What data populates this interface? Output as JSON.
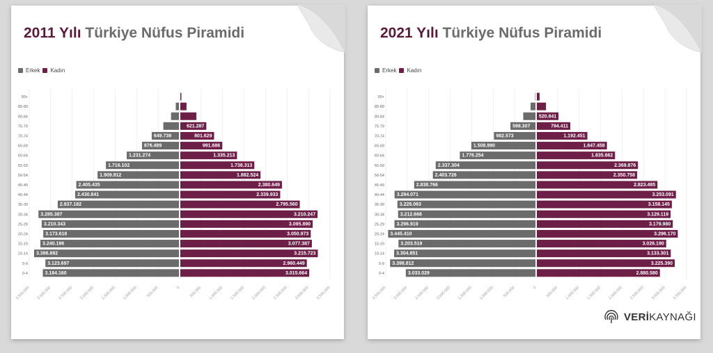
{
  "panels": [
    {
      "title_year": "2011 Yılı",
      "title_rest": "Türkiye Nüfus Piramidi",
      "legend": [
        "Erkek",
        "Kadın"
      ]
    },
    {
      "title_year": "2021 Yılı",
      "title_rest": "Türkiye Nüfus Piramidi",
      "legend": [
        "Erkek",
        "Kadın"
      ]
    }
  ],
  "brand": {
    "bold": "VERİ",
    "rest": "KAYNAĞI"
  },
  "colors": {
    "male": "#6b6b6b",
    "female": "#6e1f48",
    "title_year": "#5a1a3a"
  },
  "chart_data": [
    {
      "type": "bar",
      "orientation": "horizontal-pyramid",
      "categories": [
        "0-4",
        "5-9",
        "10-14",
        "15-19",
        "20-24",
        "25-29",
        "30-34",
        "35-39",
        "40-44",
        "45-49",
        "50-54",
        "55-59",
        "60-64",
        "65-69",
        "70-74",
        "75-79",
        "80-84",
        "85-89",
        "90+"
      ],
      "series": [
        {
          "name": "Erkek",
          "values": [
            3184160,
            3123697,
            3386882,
            3240196,
            3173618,
            3210343,
            3285387,
            2837182,
            2430841,
            2405435,
            1909912,
            1716102,
            1231274,
            876489,
            649739,
            380000,
            200000,
            90000,
            15000
          ],
          "labels": [
            "3.184.160",
            "3.123.697",
            "3.386.882",
            "3.240.196",
            "3.173.618",
            "3.210.343",
            "3.285.387",
            "2.837.182",
            "2.430.841",
            "2.405.435",
            "1.909.912",
            "1.716.102",
            "1.231.274",
            "876.489",
            "649.739",
            "",
            "",
            "",
            ""
          ]
        },
        {
          "name": "Kadın",
          "values": [
            3015664,
            2960449,
            3215723,
            3077387,
            3050973,
            3095890,
            3210247,
            2795560,
            2339933,
            2380649,
            1882524,
            1738313,
            1335213,
            991686,
            801629,
            621287,
            390000,
            160000,
            40000
          ],
          "labels": [
            "3.015.664",
            "2.960.449",
            "3.215.723",
            "3.077.387",
            "3.050.973",
            "3.095.890",
            "3.210.247",
            "2.795.560",
            "2.339.933",
            "2.380.649",
            "1.882.524",
            "1.738.313",
            "1.335.213",
            "991.686",
            "801.629",
            "621.287",
            "",
            "",
            ""
          ]
        }
      ],
      "xlim": [
        -3500000,
        3500000
      ],
      "ticks": [
        "3.500.000",
        "3.000.000",
        "2.500.000",
        "2.000.000",
        "1.500.000",
        "1.000.000",
        "500.000",
        "0",
        "500.000",
        "1.000.000",
        "1.500.000",
        "2.000.000",
        "2.500.000",
        "3.000.000",
        "3.500.000"
      ],
      "legend_position": "top-left",
      "grid": true
    },
    {
      "type": "bar",
      "orientation": "horizontal-pyramid",
      "categories": [
        "0-4",
        "5-9",
        "10-14",
        "15-19",
        "20-24",
        "25-29",
        "30-34",
        "35-39",
        "40-44",
        "45-49",
        "50-54",
        "55-59",
        "60-64",
        "65-69",
        "70-74",
        "75-79",
        "80-84",
        "85-89",
        "90+"
      ],
      "series": [
        {
          "name": "Erkek",
          "values": [
            3033029,
            3398812,
            3304851,
            3203519,
            3445410,
            3296919,
            3212668,
            3228063,
            3294071,
            2838766,
            2403726,
            2337304,
            1776254,
            1508990,
            982573,
            598307,
            300000,
            130000,
            25000
          ],
          "labels": [
            "3.033.029",
            "3.398.812",
            "3.304.851",
            "3.203.519",
            "3.445.410",
            "3.296.919",
            "3.212.668",
            "3.228.063",
            "3.294.071",
            "2.838.766",
            "2.403.726",
            "2.337.304",
            "1.776.254",
            "1.508.990",
            "982.573",
            "598.307",
            "",
            "",
            ""
          ]
        },
        {
          "name": "Kadın",
          "values": [
            2880580,
            3225390,
            3133301,
            3026190,
            3296170,
            3179980,
            3129119,
            3158145,
            3253091,
            2823495,
            2350758,
            2369876,
            1835662,
            1647458,
            1192451,
            794411,
            520841,
            230000,
            80000
          ],
          "labels": [
            "2.880.580",
            "3.225.390",
            "3.133.301",
            "3.026.190",
            "3.296.170",
            "3.179.980",
            "3.129.119",
            "3.158.145",
            "3.253.091",
            "2.823.495",
            "2.350.758",
            "2.369.876",
            "1.835.662",
            "1.647.458",
            "1.192.451",
            "794.411",
            "520.841",
            "",
            ""
          ]
        }
      ],
      "xlim": [
        -3500000,
        3500000
      ],
      "ticks": [
        "3.500.000",
        "3.000.000",
        "2.500.000",
        "2.000.000",
        "1.500.000",
        "1.000.000",
        "500.000",
        "0",
        "500.000",
        "1.000.000",
        "1.500.000",
        "2.000.000",
        "2.500.000",
        "3.000.000",
        "3.500.000"
      ],
      "legend_position": "top-left",
      "grid": true
    }
  ]
}
